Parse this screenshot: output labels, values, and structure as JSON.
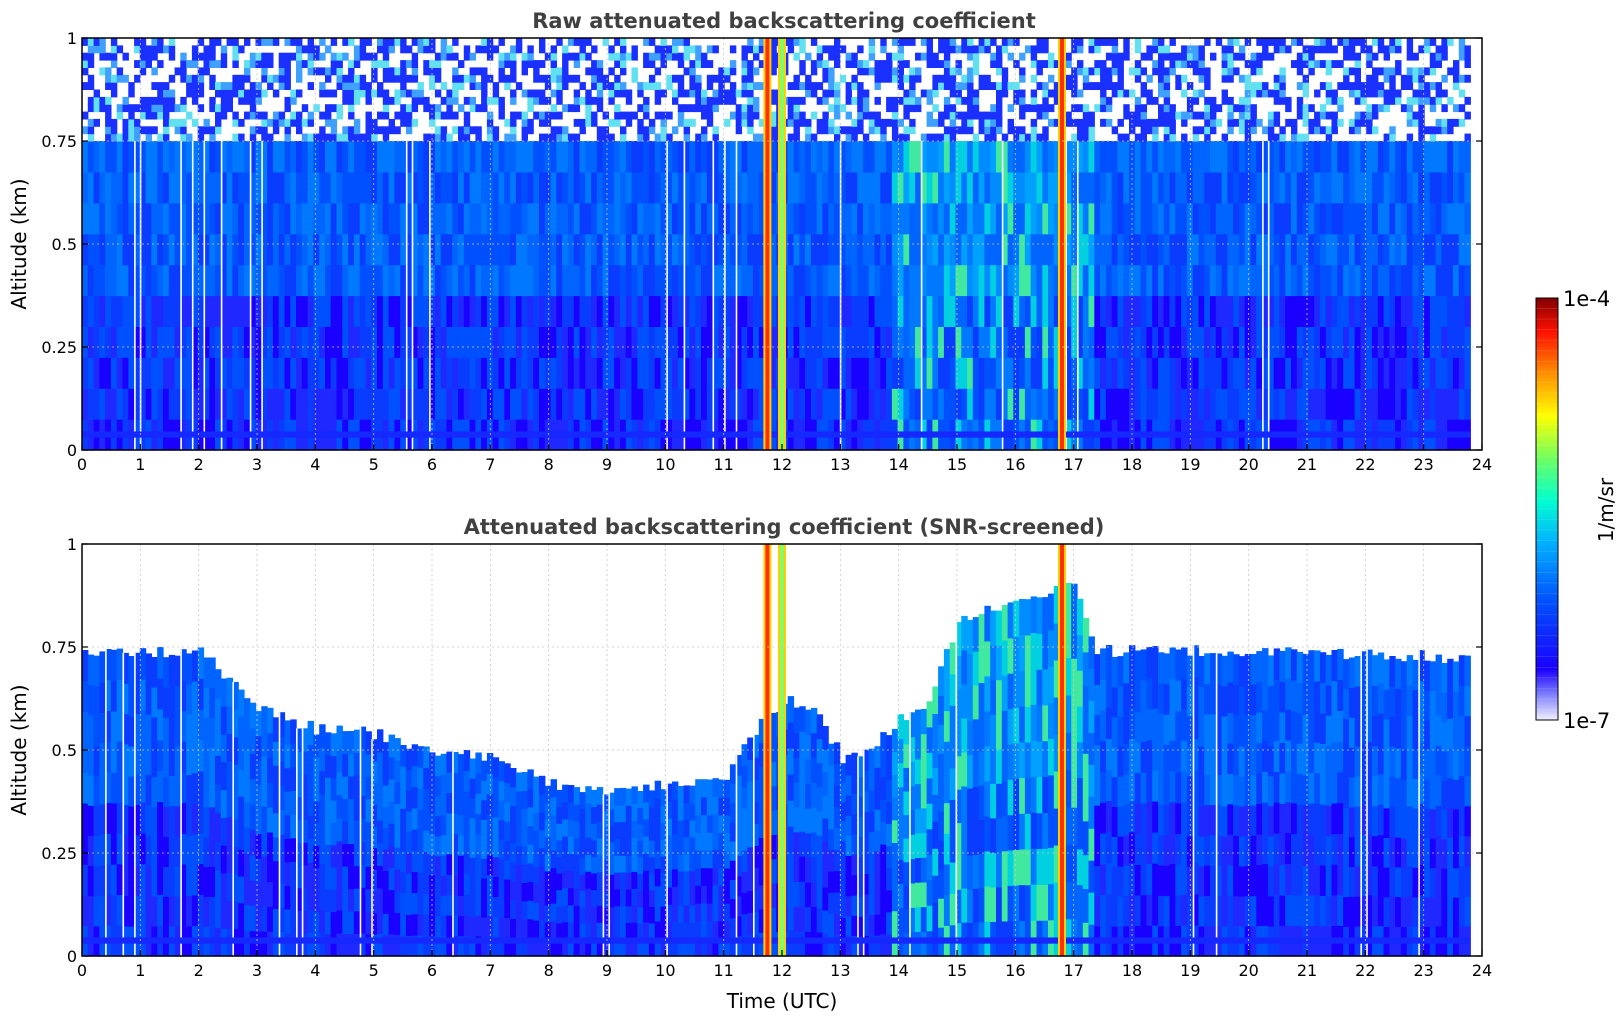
{
  "chart_data": [
    {
      "type": "heatmap",
      "title": "Raw attenuated backscattering coefficient",
      "xlabel": "",
      "ylabel": "Altitude (km)",
      "xlim": [
        0,
        24
      ],
      "ylim": [
        0,
        1
      ],
      "x_ticks": [
        "0",
        "1",
        "2",
        "3",
        "4",
        "5",
        "6",
        "7",
        "8",
        "9",
        "10",
        "11",
        "12",
        "13",
        "14",
        "15",
        "16",
        "17",
        "18",
        "19",
        "20",
        "21",
        "22",
        "23",
        "24"
      ],
      "y_ticks": [
        "0",
        "0.25",
        "0.5",
        "0.75",
        "1"
      ],
      "grid": true,
      "data_extent_hours": [
        0,
        23.8
      ],
      "noise_top_km": 0.75,
      "high_signal_columns_utc": [
        11.75,
        12.0,
        16.8
      ],
      "elevated_signal_period_utc": [
        13.8,
        17.3
      ]
    },
    {
      "type": "heatmap",
      "title": "Attenuated backscattering coefficient (SNR-screened)",
      "xlabel": "Time (UTC)",
      "ylabel": "Altitude (km)",
      "xlim": [
        0,
        24
      ],
      "ylim": [
        0,
        1
      ],
      "x_ticks": [
        "0",
        "1",
        "2",
        "3",
        "4",
        "5",
        "6",
        "7",
        "8",
        "9",
        "10",
        "11",
        "12",
        "13",
        "14",
        "15",
        "16",
        "17",
        "18",
        "19",
        "20",
        "21",
        "22",
        "23",
        "24"
      ],
      "y_ticks": [
        "0",
        "0.25",
        "0.5",
        "0.75",
        "1"
      ],
      "grid": true,
      "data_extent_hours": [
        0,
        23.8
      ],
      "signal_top_km": {
        "x": [
          0,
          1,
          2,
          3,
          4,
          5,
          6,
          7,
          8,
          9,
          10,
          11,
          11.5,
          12,
          12.5,
          13,
          13.5,
          14,
          14.5,
          15,
          16,
          17,
          17.3,
          18,
          19,
          20,
          21,
          22,
          23,
          23.8
        ],
        "y": [
          0.74,
          0.74,
          0.74,
          0.6,
          0.55,
          0.54,
          0.5,
          0.48,
          0.42,
          0.4,
          0.42,
          0.44,
          0.55,
          0.62,
          0.6,
          0.48,
          0.5,
          0.58,
          0.62,
          0.82,
          0.86,
          0.9,
          0.74,
          0.74,
          0.74,
          0.74,
          0.74,
          0.73,
          0.73,
          0.72
        ]
      },
      "high_signal_columns_utc": [
        11.75,
        12.0,
        16.8
      ],
      "elevated_signal_period_utc": [
        13.8,
        17.3
      ]
    }
  ],
  "colorbar": {
    "label": "1/m/sr",
    "min_label": "1e-7",
    "max_label": "1e-4",
    "scale": "log",
    "colors": [
      "#ffffff",
      "#1a00ff",
      "#0060ff",
      "#00c0ff",
      "#00ffc0",
      "#80ff40",
      "#ffff00",
      "#ff8000",
      "#ff0000",
      "#800000"
    ]
  }
}
